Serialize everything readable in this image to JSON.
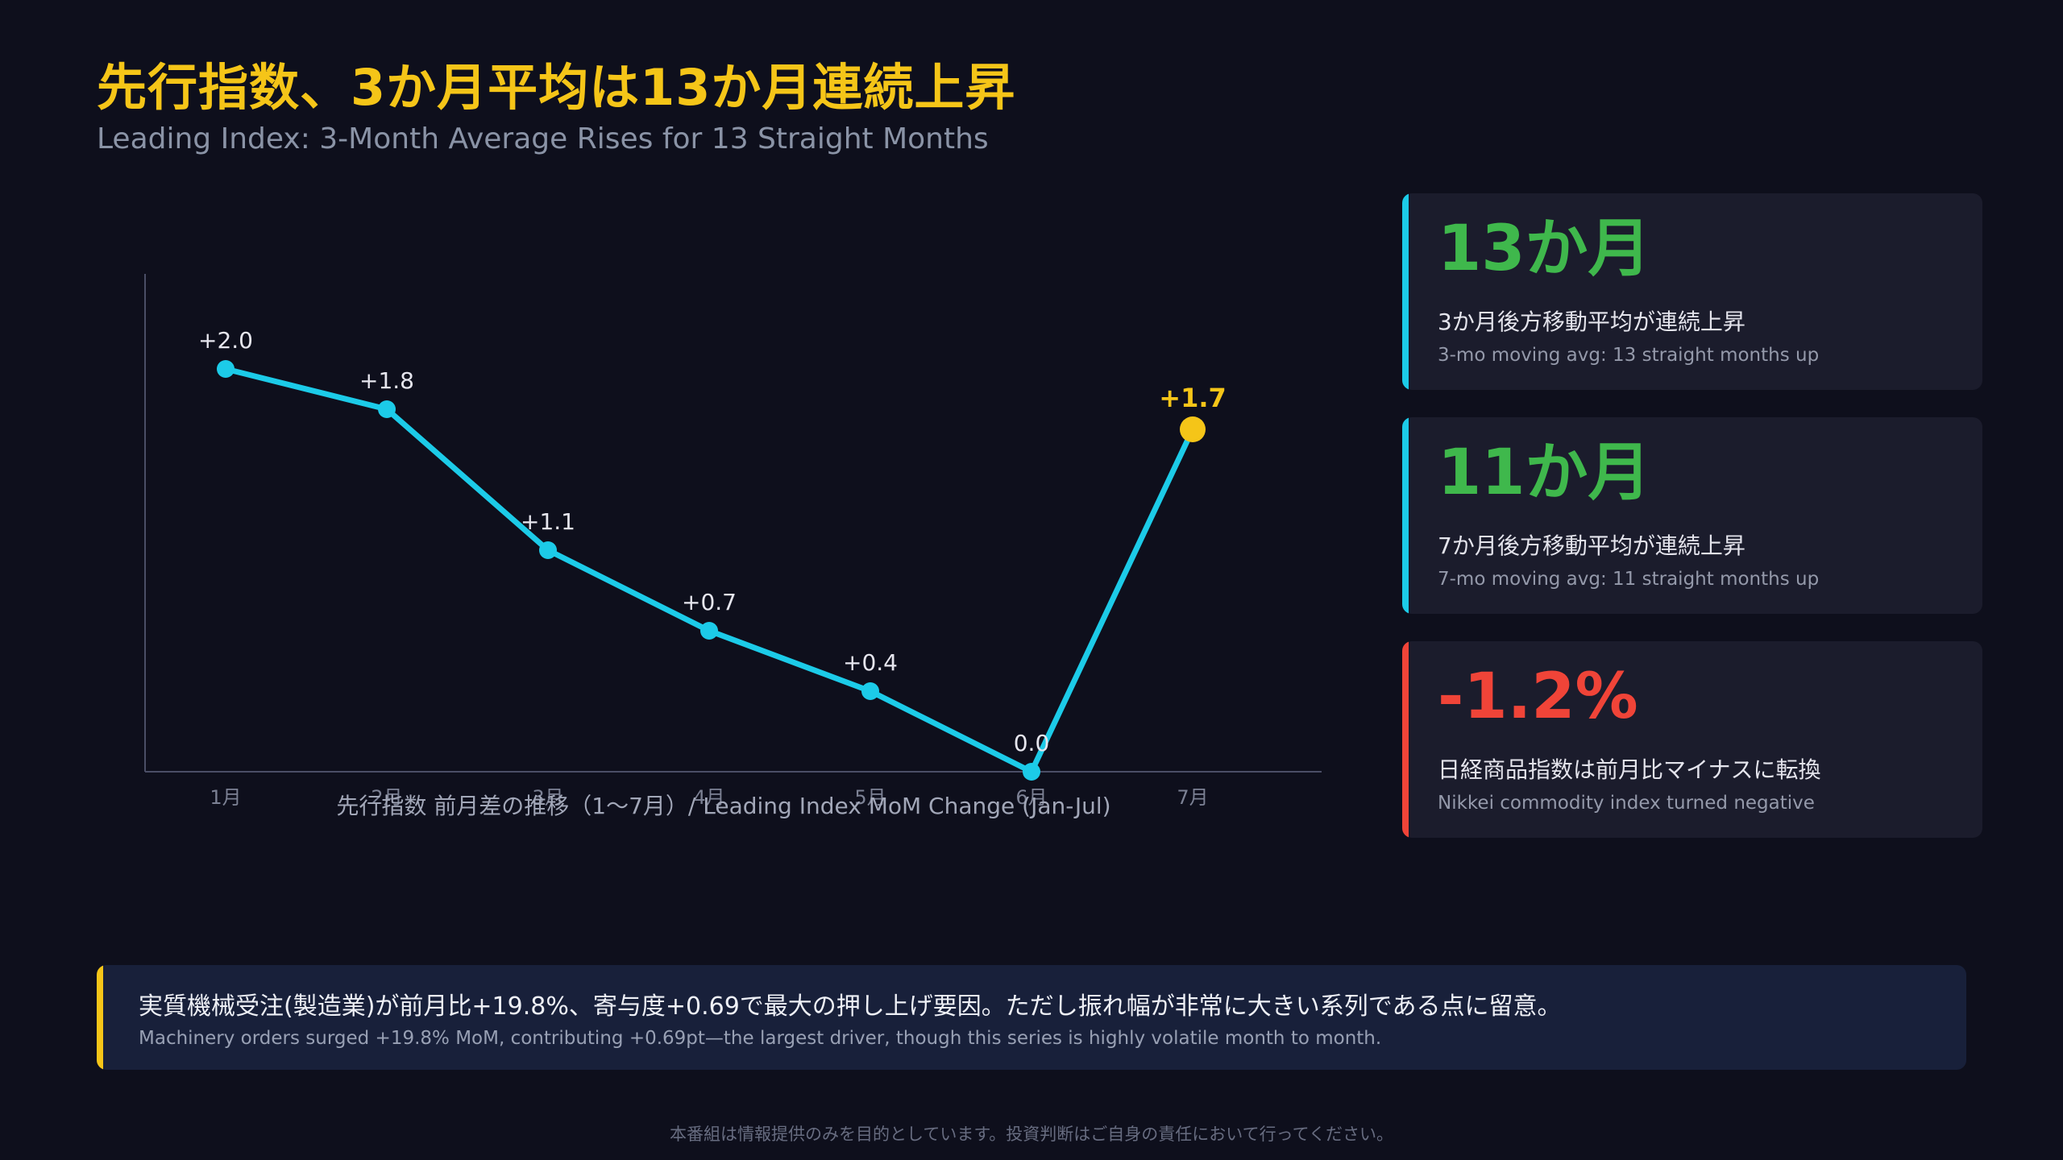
{
  "header": {
    "title": "先行指数、3か月平均は13か月連続上昇",
    "subtitle": "Leading Index: 3-Month Average Rises for 13 Straight Months"
  },
  "chart_data": {
    "type": "line",
    "title": "先行指数 前月差の推移（1〜7月）/ Leading Index MoM Change (Jan-Jul)",
    "categories": [
      "1月",
      "2月",
      "3月",
      "4月",
      "5月",
      "6月",
      "7月"
    ],
    "series": [
      {
        "values": [
          2.0,
          1.8,
          1.1,
          0.7,
          0.4,
          0.0,
          1.7
        ]
      }
    ],
    "data_labels": [
      "+2.0",
      "+1.8",
      "+1.1",
      "+0.7",
      "+0.4",
      "0.0",
      "+1.7"
    ],
    "highlight_index": 6,
    "ylim": [
      0,
      2.5
    ],
    "grid": false,
    "colors": {
      "line": "#1ccbe8",
      "highlight": "#f5c518",
      "axis": "#4a4e66",
      "label": "#e6e6ee",
      "tick": "#7c8194"
    }
  },
  "cards": [
    {
      "value": "13か月",
      "jp": "3か月後方移動平均が連続上昇",
      "en": "3-mo moving avg: 13 straight months up",
      "value_color": "#3fb84c",
      "bar_color": "#1ccbe8"
    },
    {
      "value": "11か月",
      "jp": "7か月後方移動平均が連続上昇",
      "en": "7-mo moving avg: 11 straight months up",
      "value_color": "#3fb84c",
      "bar_color": "#1ccbe8"
    },
    {
      "value": "-1.2%",
      "jp": "日経商品指数は前月比マイナスに転換",
      "en": "Nikkei commodity index turned negative",
      "value_color": "#f04438",
      "bar_color": "#f04438"
    }
  ],
  "note": {
    "jp": "実質機械受注(製造業)が前月比+19.8%、寄与度+0.69で最大の押し上げ要因。ただし振れ幅が非常に大きい系列である点に留意。",
    "en": "Machinery orders surged +19.8% MoM, contributing +0.69pt—the largest driver, though this series is highly volatile month to month."
  },
  "footer": {
    "disclaimer": "本番組は情報提供のみを目的としています。投資判断はご自身の責任において行ってください。"
  }
}
